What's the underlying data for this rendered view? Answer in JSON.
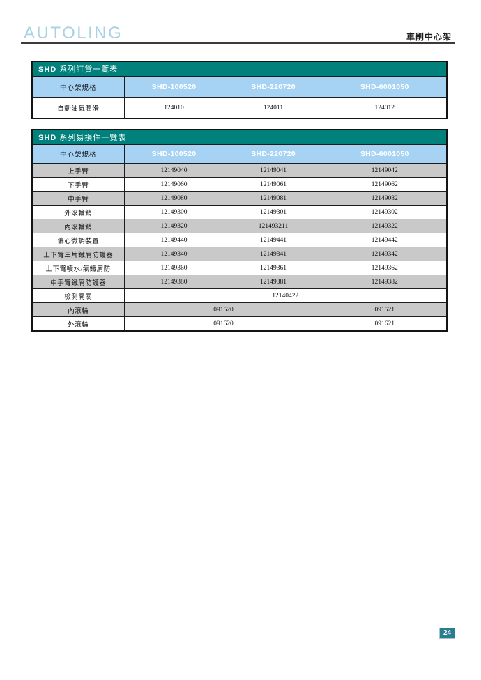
{
  "page": {
    "brand": "AUTOLING",
    "header_right": "車削中心架",
    "page_number": "24"
  },
  "colors": {
    "teal_title_bar": "#00817C",
    "header_blue": "#A6D2F4",
    "row_gray": "#C9C9C9",
    "brand_blue": "#A9D2E4",
    "badge_teal": "#2A7D8E"
  },
  "table1": {
    "title_prefix": "SHD",
    "title_rest": "系列訂貨一覽表",
    "columns": [
      "中心架規格",
      "SHD-100520",
      "SHD-220720",
      "SHD-6001050"
    ],
    "rows": [
      {
        "label": "自動油氣潤滑",
        "shaded": false,
        "cells": [
          {
            "text": "124010",
            "span": 1
          },
          {
            "text": "124011",
            "span": 1
          },
          {
            "text": "124012",
            "span": 1
          }
        ]
      }
    ]
  },
  "table2": {
    "title_prefix": "SHD",
    "title_rest": "系列易損件一覽表",
    "columns": [
      "中心架規格",
      "SHD-100520",
      "SHD-220720",
      "SHD-6001050"
    ],
    "rows": [
      {
        "label": "上手臂",
        "shaded": true,
        "cells": [
          {
            "text": "12149040",
            "span": 1
          },
          {
            "text": "12149041",
            "span": 1
          },
          {
            "text": "12149042",
            "span": 1
          }
        ]
      },
      {
        "label": "下手臂",
        "shaded": false,
        "cells": [
          {
            "text": "12149060",
            "span": 1
          },
          {
            "text": "12149061",
            "span": 1
          },
          {
            "text": "12149062",
            "span": 1
          }
        ]
      },
      {
        "label": "中手臂",
        "shaded": true,
        "cells": [
          {
            "text": "12149080",
            "span": 1
          },
          {
            "text": "12149081",
            "span": 1
          },
          {
            "text": "12149082",
            "span": 1
          }
        ]
      },
      {
        "label": "外滾輪銷",
        "shaded": false,
        "cells": [
          {
            "text": "12149300",
            "span": 1
          },
          {
            "text": "12149301",
            "span": 1
          },
          {
            "text": "12149302",
            "span": 1
          }
        ]
      },
      {
        "label": "內滾輪銷",
        "shaded": true,
        "cells": [
          {
            "text": "12149320",
            "span": 1
          },
          {
            "text": "121493211",
            "span": 1
          },
          {
            "text": "12149322",
            "span": 1
          }
        ]
      },
      {
        "label": "偏心微調裝置",
        "shaded": false,
        "cells": [
          {
            "text": "12149440",
            "span": 1
          },
          {
            "text": "12149441",
            "span": 1
          },
          {
            "text": "12149442",
            "span": 1
          }
        ]
      },
      {
        "label": "上下臂三片鐵屑防護器",
        "shaded": true,
        "cells": [
          {
            "text": "12149340",
            "span": 1
          },
          {
            "text": "12149341",
            "span": 1
          },
          {
            "text": "12149342",
            "span": 1
          }
        ]
      },
      {
        "label": "上下臂噴水/氣鐵屑防",
        "shaded": false,
        "cells": [
          {
            "text": "12149360",
            "span": 1
          },
          {
            "text": "12149361",
            "span": 1
          },
          {
            "text": "12149362",
            "span": 1
          }
        ]
      },
      {
        "label": "中手臂鐵屑防護器",
        "shaded": true,
        "cells": [
          {
            "text": "12149380",
            "span": 1
          },
          {
            "text": "12149381",
            "span": 1
          },
          {
            "text": "12149382",
            "span": 1
          }
        ]
      },
      {
        "label": "檢測開關",
        "shaded": false,
        "cells": [
          {
            "text": "12140422",
            "span": 3
          }
        ]
      },
      {
        "label": "內滾輪",
        "shaded": true,
        "cells": [
          {
            "text": "091520",
            "span": 2
          },
          {
            "text": "091521",
            "span": 1
          }
        ]
      },
      {
        "label": "外滾輪",
        "shaded": false,
        "cells": [
          {
            "text": "091620",
            "span": 2
          },
          {
            "text": "091621",
            "span": 1
          }
        ]
      }
    ]
  }
}
